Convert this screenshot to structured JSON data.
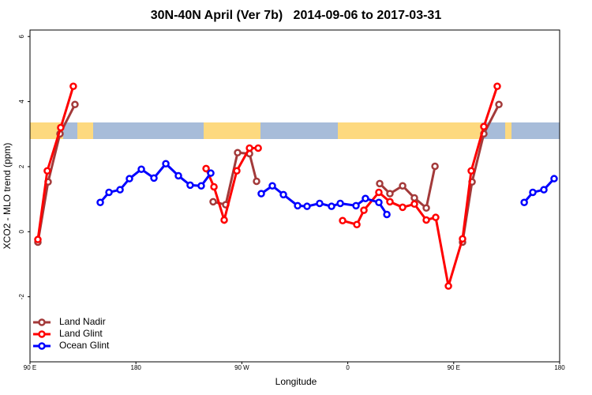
{
  "chart_data": {
    "type": "line",
    "title": "30N-40N April (Ver 7b)   2014-09-06 to 2017-03-31",
    "x_label": "Longitude",
    "y_label": "XCO2 - MLO trend (ppm)",
    "xlim": [
      90,
      540
    ],
    "ylim": [
      -4,
      6.2
    ],
    "xticks": [
      {
        "value": 90,
        "label": "90 E"
      },
      {
        "value": 180,
        "label": "180"
      },
      {
        "value": 270,
        "label": "90 W"
      },
      {
        "value": 360,
        "label": "0"
      },
      {
        "value": 450,
        "label": "90 E"
      },
      {
        "value": 540,
        "label": "180"
      }
    ],
    "yticks": [
      -2,
      0,
      2,
      4,
      6
    ],
    "legend": "bottomleft",
    "series": [
      {
        "name": "Land Nadir",
        "color": "#a33a3a",
        "x": [
          96.7,
          105.4,
          115.5,
          128.2,
          null,
          245.6,
          256.3,
          266.4,
          276.5,
          282.5,
          null,
          387.1,
          395.8,
          406.6,
          416.6,
          426.7,
          434.1,
          null,
          457.5,
          465.6,
          475.6,
          488.4
        ],
        "values": [
          -0.32,
          1.53,
          3.01,
          3.91,
          null,
          0.92,
          0.83,
          2.43,
          2.4,
          1.55,
          null,
          1.48,
          1.17,
          1.41,
          1.04,
          0.73,
          2.01,
          null,
          -0.32,
          1.53,
          3.01,
          3.91
        ]
      },
      {
        "name": "Land Glint",
        "color": "#ff0000",
        "x": [
          96.7,
          104.7,
          116.1,
          126.8,
          null,
          239.6,
          246.3,
          255.0,
          265.7,
          276.5,
          283.9,
          null,
          355.6,
          367.7,
          373.7,
          386.4,
          395.8,
          406.6,
          416.6,
          426.7,
          434.7,
          445.5,
          457.5,
          464.9,
          475.6,
          487.0
        ],
        "values": [
          -0.24,
          1.87,
          3.2,
          4.47,
          null,
          1.94,
          1.38,
          0.36,
          1.87,
          2.57,
          2.57,
          null,
          0.34,
          0.22,
          0.66,
          1.21,
          0.92,
          0.75,
          0.85,
          0.36,
          0.44,
          -1.67,
          -0.22,
          1.87,
          3.23,
          4.47
        ]
      },
      {
        "name": "Ocean Glint",
        "color": "#0000ff",
        "x": [
          149.7,
          157.1,
          166.5,
          174.5,
          184.6,
          195.3,
          205.4,
          216.1,
          226.1,
          235.5,
          243.6,
          null,
          286.5,
          295.9,
          305.3,
          317.4,
          325.4,
          336.1,
          346.2,
          353.6,
          367.0,
          375.0,
          386.4,
          393.2,
          null,
          509.9,
          517.2,
          526.6,
          535.3
        ],
        "values": [
          0.9,
          1.21,
          1.29,
          1.63,
          1.92,
          1.65,
          2.09,
          1.72,
          1.43,
          1.41,
          1.8,
          null,
          1.17,
          1.41,
          1.14,
          0.8,
          0.78,
          0.87,
          0.78,
          0.87,
          0.8,
          1.02,
          0.9,
          0.53,
          null,
          0.9,
          1.21,
          1.29,
          1.63
        ]
      }
    ]
  }
}
